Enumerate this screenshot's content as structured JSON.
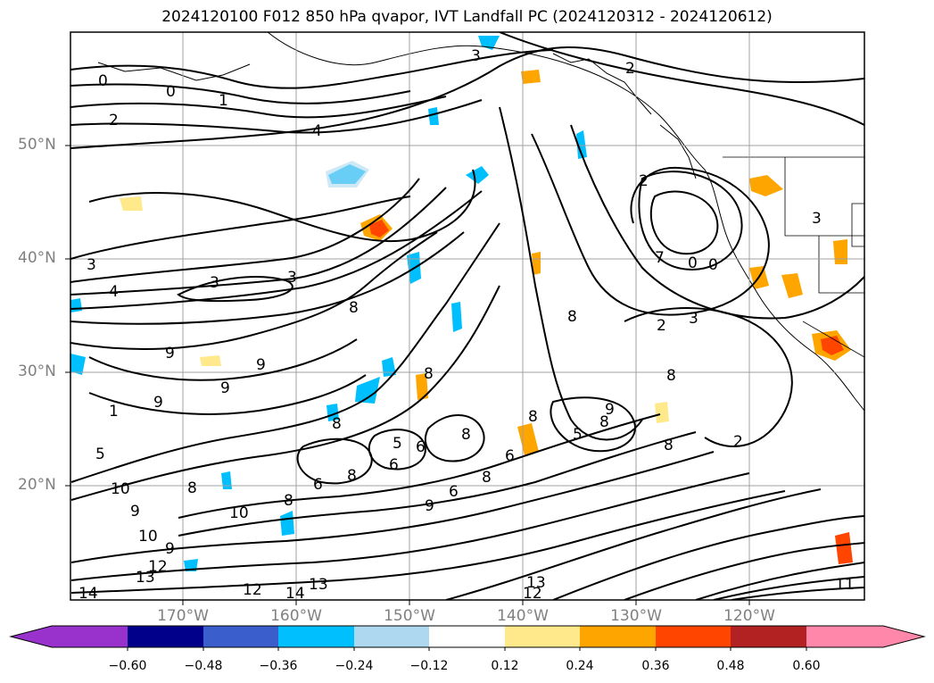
{
  "title": "2024120100 F012 850 hPa qvapor, IVT Landfall PC (2024120312 - 2024120612)",
  "map": {
    "lat_labels": [
      "50°N",
      "40°N",
      "30°N",
      "20°N"
    ],
    "lon_labels": [
      "170°W",
      "160°W",
      "150°W",
      "140°W",
      "130°W",
      "120°W"
    ],
    "gridline_color": "#a0a0a0",
    "contour_color": "#000000",
    "contour_labels": [
      "0",
      "0",
      "1",
      "2",
      "4",
      "3",
      "3",
      "4",
      "3",
      "3",
      "8",
      "9",
      "9",
      "9",
      "1",
      "9",
      "5",
      "10",
      "9",
      "10",
      "10",
      "9",
      "12",
      "13",
      "14",
      "12",
      "14",
      "13",
      "8",
      "8",
      "6",
      "8",
      "6",
      "8",
      "5",
      "6",
      "8",
      "8",
      "9",
      "6",
      "8",
      "8",
      "5",
      "6",
      "13",
      "12",
      "8",
      "2",
      "2",
      "7",
      "0",
      "0",
      "3",
      "2",
      "3",
      "8",
      "9",
      "8",
      "8",
      "2",
      "11"
    ]
  },
  "colorbar": {
    "tick_labels": [
      "−0.60",
      "−0.48",
      "−0.36",
      "−0.24",
      "−0.12",
      "0.12",
      "0.24",
      "0.36",
      "0.48",
      "0.60"
    ],
    "segment_colors": [
      "#9932cc",
      "#00008b",
      "#3a5fcd",
      "#00bfff",
      "#add8f0",
      "#ffffff",
      "#ffe98a",
      "#ffa500",
      "#ff4500",
      "#b22222",
      "#ff88aa"
    ]
  }
}
